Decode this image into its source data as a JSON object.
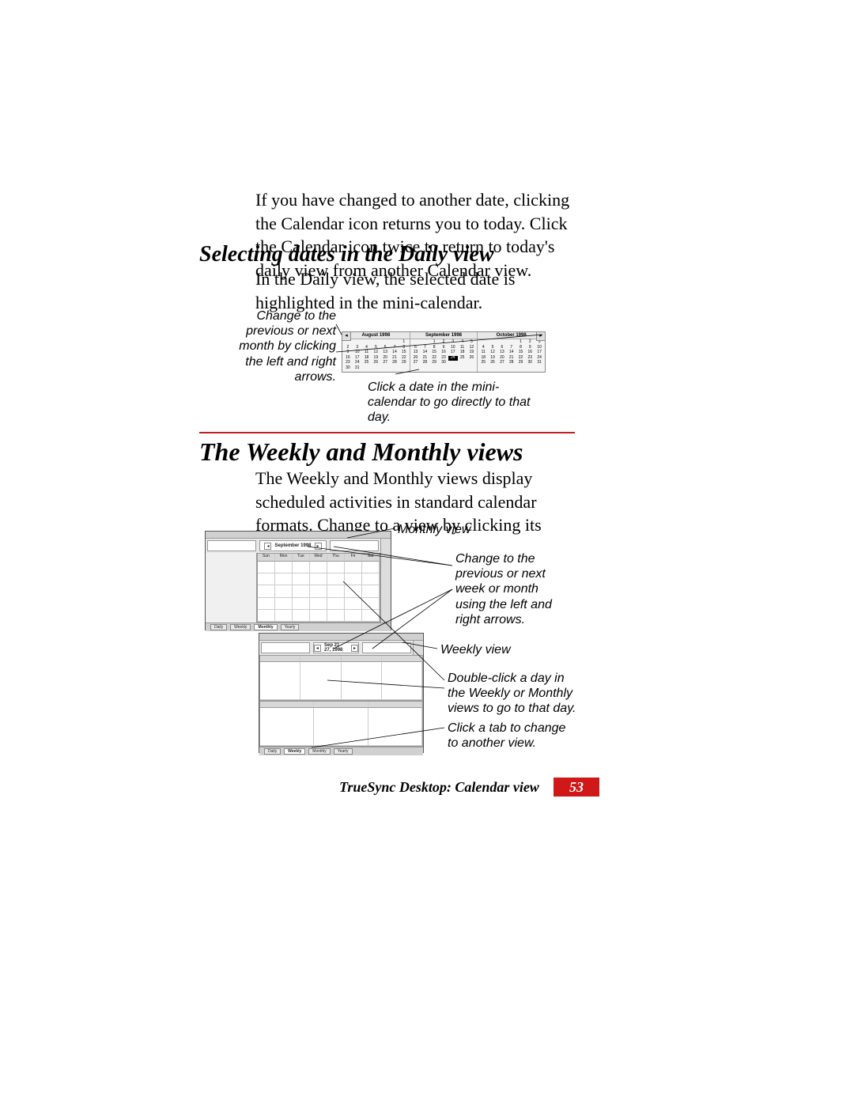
{
  "intro_paragraph": "If you have changed to another date, clicking the Calendar icon returns you to today. Click the Calendar icon twice to return to today's daily view from another Calendar view.",
  "heading_selecting": "Selecting dates in the Daily view",
  "selecting_paragraph": "In the Daily view, the selected date is highlighted in the mini-calendar.",
  "annot_left_arrows": "Change to the previous or next month by clicking the left and right arrows.",
  "annot_click_date": "Click a date in the mini-calendar to go directly to that day.",
  "mini_cal": {
    "months": [
      {
        "title": "August 1998",
        "days": [
          "",
          "",
          "",
          "",
          "",
          "",
          "1",
          "2",
          "3",
          "4",
          "5",
          "6",
          "7",
          "8",
          "9",
          "10",
          "11",
          "12",
          "13",
          "14",
          "15",
          "16",
          "17",
          "18",
          "19",
          "20",
          "21",
          "22",
          "23",
          "24",
          "25",
          "26",
          "27",
          "28",
          "29",
          "30",
          "31",
          "",
          "",
          "",
          "",
          ""
        ]
      },
      {
        "title": "September 1998",
        "days": [
          "",
          "",
          "1",
          "2",
          "3",
          "4",
          "5",
          "6",
          "7",
          "8",
          "9",
          "10",
          "11",
          "12",
          "13",
          "14",
          "15",
          "16",
          "17",
          "18",
          "19",
          "20",
          "21",
          "22",
          "23",
          "24",
          "25",
          "26",
          "27",
          "28",
          "29",
          "30",
          "",
          "",
          "",
          "",
          "",
          "",
          "",
          "",
          "",
          ""
        ],
        "selected_index": 25
      },
      {
        "title": "October 1998",
        "days": [
          "",
          "",
          "",
          "",
          "1",
          "2",
          "3",
          "4",
          "5",
          "6",
          "7",
          "8",
          "9",
          "10",
          "11",
          "12",
          "13",
          "14",
          "15",
          "16",
          "17",
          "18",
          "19",
          "20",
          "21",
          "22",
          "23",
          "24",
          "25",
          "26",
          "27",
          "28",
          "29",
          "30",
          "31",
          "",
          "",
          "",
          "",
          "",
          "",
          ""
        ]
      }
    ]
  },
  "heading_weekly_monthly": "The Weekly and Monthly views",
  "weekly_monthly_paragraph": "The Weekly and Monthly views display scheduled activities in standard calendar formats. Change to a view by clicking its view tab.",
  "annot_monthly_view": "Monthly view",
  "annot_change_week_month": "Change to the previous or next week or month using the left and right arrows.",
  "annot_weekly_view": "Weekly view",
  "annot_double_click": "Double-click a day in the Weekly or Monthly views to go to that day.",
  "annot_click_tab": "Click a tab to change to another view.",
  "monthly_shot": {
    "title": "September 1998",
    "day_headers": [
      "Sun",
      "Mon",
      "Tue",
      "Wed",
      "Thu",
      "Fri",
      "Sat"
    ],
    "tabs": [
      "Daily",
      "Weekly",
      "Monthly",
      "Yearly"
    ]
  },
  "weekly_shot": {
    "title": "Sep 21 - 27, 1998",
    "tabs": [
      "Daily",
      "Weekly",
      "Monthly",
      "Yearly"
    ]
  },
  "footer_text": "TrueSync Desktop: Calendar view",
  "footer_page": "53",
  "colors": {
    "rule": "#c02020",
    "page_box": "#d01818"
  }
}
